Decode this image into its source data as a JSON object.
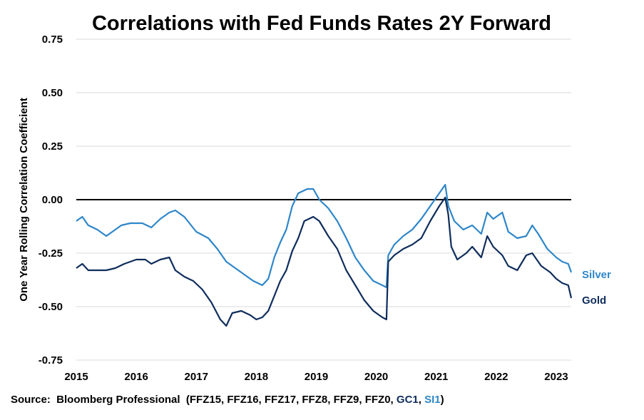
{
  "chart_data": {
    "type": "line",
    "title": "Correlations with Fed Funds Rates 2Y Forward",
    "ylabel": "One Year Rolling Correlation Coefficient",
    "xlabel": "",
    "x_ticks": [
      "2015",
      "2016",
      "2017",
      "2018",
      "2019",
      "2020",
      "2021",
      "2022",
      "2023"
    ],
    "y_ticks": [
      "0.75",
      "0.50",
      "0.25",
      "0.00",
      "-0.25",
      "-0.50",
      "-0.75"
    ],
    "xlim": [
      2015.0,
      2023.25
    ],
    "ylim": [
      -0.75,
      0.75
    ],
    "grid": "horizontal",
    "zero_line": true,
    "legend": "labels at right end of each series",
    "series": [
      {
        "name": "Silver",
        "color": "#2E86C9",
        "points": [
          [
            2015.0,
            -0.1
          ],
          [
            2015.1,
            -0.08
          ],
          [
            2015.2,
            -0.12
          ],
          [
            2015.35,
            -0.14
          ],
          [
            2015.5,
            -0.17
          ],
          [
            2015.6,
            -0.15
          ],
          [
            2015.75,
            -0.12
          ],
          [
            2015.9,
            -0.11
          ],
          [
            2016.1,
            -0.11
          ],
          [
            2016.25,
            -0.13
          ],
          [
            2016.4,
            -0.09
          ],
          [
            2016.55,
            -0.06
          ],
          [
            2016.65,
            -0.05
          ],
          [
            2016.8,
            -0.08
          ],
          [
            2017.0,
            -0.15
          ],
          [
            2017.2,
            -0.18
          ],
          [
            2017.35,
            -0.23
          ],
          [
            2017.5,
            -0.29
          ],
          [
            2017.65,
            -0.32
          ],
          [
            2017.8,
            -0.35
          ],
          [
            2017.95,
            -0.38
          ],
          [
            2018.1,
            -0.4
          ],
          [
            2018.2,
            -0.37
          ],
          [
            2018.3,
            -0.27
          ],
          [
            2018.4,
            -0.2
          ],
          [
            2018.5,
            -0.14
          ],
          [
            2018.6,
            -0.03
          ],
          [
            2018.7,
            0.03
          ],
          [
            2018.85,
            0.05
          ],
          [
            2018.95,
            0.05
          ],
          [
            2019.05,
            0.0
          ],
          [
            2019.2,
            -0.04
          ],
          [
            2019.35,
            -0.1
          ],
          [
            2019.5,
            -0.18
          ],
          [
            2019.65,
            -0.27
          ],
          [
            2019.8,
            -0.33
          ],
          [
            2019.95,
            -0.38
          ],
          [
            2020.1,
            -0.4
          ],
          [
            2020.17,
            -0.41
          ],
          [
            2020.2,
            -0.26
          ],
          [
            2020.3,
            -0.21
          ],
          [
            2020.45,
            -0.17
          ],
          [
            2020.6,
            -0.14
          ],
          [
            2020.75,
            -0.09
          ],
          [
            2020.9,
            -0.03
          ],
          [
            2021.05,
            0.03
          ],
          [
            2021.15,
            0.07
          ],
          [
            2021.2,
            -0.03
          ],
          [
            2021.3,
            -0.1
          ],
          [
            2021.45,
            -0.14
          ],
          [
            2021.6,
            -0.12
          ],
          [
            2021.75,
            -0.16
          ],
          [
            2021.85,
            -0.06
          ],
          [
            2021.95,
            -0.09
          ],
          [
            2022.1,
            -0.06
          ],
          [
            2022.2,
            -0.15
          ],
          [
            2022.35,
            -0.18
          ],
          [
            2022.5,
            -0.17
          ],
          [
            2022.6,
            -0.12
          ],
          [
            2022.7,
            -0.16
          ],
          [
            2022.85,
            -0.23
          ],
          [
            2023.0,
            -0.27
          ],
          [
            2023.1,
            -0.29
          ],
          [
            2023.2,
            -0.3
          ],
          [
            2023.25,
            -0.34
          ]
        ]
      },
      {
        "name": "Gold",
        "color": "#0F2D5C",
        "points": [
          [
            2015.0,
            -0.32
          ],
          [
            2015.1,
            -0.3
          ],
          [
            2015.2,
            -0.33
          ],
          [
            2015.35,
            -0.33
          ],
          [
            2015.5,
            -0.33
          ],
          [
            2015.65,
            -0.32
          ],
          [
            2015.8,
            -0.3
          ],
          [
            2016.0,
            -0.28
          ],
          [
            2016.15,
            -0.28
          ],
          [
            2016.25,
            -0.3
          ],
          [
            2016.4,
            -0.28
          ],
          [
            2016.55,
            -0.27
          ],
          [
            2016.65,
            -0.33
          ],
          [
            2016.8,
            -0.36
          ],
          [
            2016.95,
            -0.38
          ],
          [
            2017.1,
            -0.42
          ],
          [
            2017.25,
            -0.48
          ],
          [
            2017.4,
            -0.56
          ],
          [
            2017.5,
            -0.59
          ],
          [
            2017.6,
            -0.53
          ],
          [
            2017.75,
            -0.52
          ],
          [
            2017.9,
            -0.54
          ],
          [
            2018.0,
            -0.56
          ],
          [
            2018.1,
            -0.55
          ],
          [
            2018.2,
            -0.52
          ],
          [
            2018.3,
            -0.45
          ],
          [
            2018.4,
            -0.38
          ],
          [
            2018.5,
            -0.33
          ],
          [
            2018.6,
            -0.24
          ],
          [
            2018.7,
            -0.18
          ],
          [
            2018.8,
            -0.1
          ],
          [
            2018.95,
            -0.08
          ],
          [
            2019.05,
            -0.1
          ],
          [
            2019.2,
            -0.17
          ],
          [
            2019.35,
            -0.23
          ],
          [
            2019.5,
            -0.33
          ],
          [
            2019.65,
            -0.4
          ],
          [
            2019.8,
            -0.47
          ],
          [
            2019.95,
            -0.52
          ],
          [
            2020.1,
            -0.55
          ],
          [
            2020.17,
            -0.56
          ],
          [
            2020.2,
            -0.29
          ],
          [
            2020.3,
            -0.26
          ],
          [
            2020.45,
            -0.23
          ],
          [
            2020.6,
            -0.21
          ],
          [
            2020.75,
            -0.18
          ],
          [
            2020.9,
            -0.1
          ],
          [
            2021.05,
            -0.03
          ],
          [
            2021.15,
            0.01
          ],
          [
            2021.2,
            -0.07
          ],
          [
            2021.25,
            -0.22
          ],
          [
            2021.35,
            -0.28
          ],
          [
            2021.5,
            -0.25
          ],
          [
            2021.6,
            -0.22
          ],
          [
            2021.75,
            -0.27
          ],
          [
            2021.85,
            -0.17
          ],
          [
            2021.95,
            -0.22
          ],
          [
            2022.1,
            -0.26
          ],
          [
            2022.2,
            -0.31
          ],
          [
            2022.35,
            -0.33
          ],
          [
            2022.5,
            -0.26
          ],
          [
            2022.6,
            -0.25
          ],
          [
            2022.75,
            -0.31
          ],
          [
            2022.9,
            -0.34
          ],
          [
            2023.0,
            -0.37
          ],
          [
            2023.1,
            -0.39
          ],
          [
            2023.2,
            -0.4
          ],
          [
            2023.25,
            -0.46
          ]
        ]
      }
    ]
  },
  "source": {
    "prefix": "Source:  Bloomberg Professional  (FFZ15, FFZ16, FFZ17, FFZ8, FFZ9, FFZ0, ",
    "gold_code": "GC1",
    "separator": ", ",
    "silver_code": "SI1",
    "suffix": ")"
  }
}
